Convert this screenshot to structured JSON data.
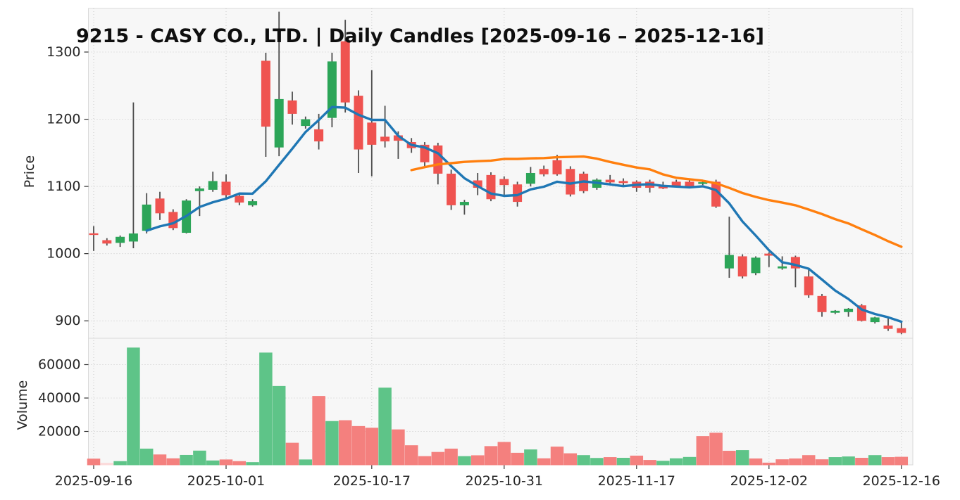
{
  "title": "9215 - CASY CO., LTD. | Daily Candles [2025-09-16 – 2025-12-16]",
  "price_axis_label": "Price",
  "volume_axis_label": "Volume",
  "colors": {
    "candle_up": "#2ca558",
    "candle_down": "#ef5350",
    "wick": "#4d4d4d",
    "volume_up": "#5ec488",
    "volume_down": "#f4807e",
    "volume_pale": "#fbdbdb",
    "ma_fast": "#1f77b4",
    "ma_slow": "#ff7f0e",
    "grid": "#c9c9c9",
    "panel_bg": "#f7f7f7",
    "frame": "#d9d9d9",
    "tick_text": "#262626"
  },
  "chart_data": {
    "type": "candlestick+volume",
    "title": "9215 - CASY CO., LTD. | Daily Candles [2025-09-16 – 2025-12-16]",
    "ylabel_price": "Price",
    "ylabel_volume": "Volume",
    "legend_position": "none",
    "grid": true,
    "price_axis_ticks": [
      1300,
      1200,
      1100,
      1000,
      900
    ],
    "volume_axis_ticks": [
      60000,
      40000,
      20000
    ],
    "price_ylim": [
      878,
      1365
    ],
    "volume_ylim": [
      0,
      75800
    ],
    "x_tick_indices": [
      0,
      10,
      21,
      31,
      41,
      51,
      61
    ],
    "x_tick_labels": [
      "2025-09-16",
      "2025-10-01",
      "2025-10-17",
      "2025-10-31",
      "2025-11-17",
      "2025-12-02",
      "2025-12-16"
    ],
    "ma_fast_period": 5,
    "ma_slow_period": 25,
    "dates": [
      "2025-09-16",
      "2025-09-17",
      "2025-09-18",
      "2025-09-19",
      "2025-09-22",
      "2025-09-24",
      "2025-09-25",
      "2025-09-26",
      "2025-09-29",
      "2025-09-30",
      "2025-10-01",
      "2025-10-02",
      "2025-10-03",
      "2025-10-06",
      "2025-10-07",
      "2025-10-08",
      "2025-10-09",
      "2025-10-10",
      "2025-10-14",
      "2025-10-15",
      "2025-10-16",
      "2025-10-17",
      "2025-10-20",
      "2025-10-21",
      "2025-10-22",
      "2025-10-23",
      "2025-10-24",
      "2025-10-27",
      "2025-10-28",
      "2025-10-29",
      "2025-10-30",
      "2025-10-31",
      "2025-11-04",
      "2025-11-05",
      "2025-11-06",
      "2025-11-07",
      "2025-11-10",
      "2025-11-11",
      "2025-11-12",
      "2025-11-13",
      "2025-11-14",
      "2025-11-17",
      "2025-11-18",
      "2025-11-19",
      "2025-11-20",
      "2025-11-21",
      "2025-11-25",
      "2025-11-26",
      "2025-11-27",
      "2025-11-28",
      "2025-12-01",
      "2025-12-02",
      "2025-12-03",
      "2025-12-04",
      "2025-12-05",
      "2025-12-08",
      "2025-12-09",
      "2025-12-10",
      "2025-12-11",
      "2025-12-12",
      "2025-12-15",
      "2025-12-16"
    ],
    "ohlc": [
      [
        1030,
        1041,
        1004,
        1028
      ],
      [
        1020,
        1023,
        1012,
        1015
      ],
      [
        1016,
        1027,
        1010,
        1025
      ],
      [
        1018,
        1225,
        1008,
        1030
      ],
      [
        1034,
        1090,
        1030,
        1073
      ],
      [
        1082,
        1092,
        1050,
        1060
      ],
      [
        1062,
        1066,
        1035,
        1038
      ],
      [
        1031,
        1081,
        1030,
        1079
      ],
      [
        1093,
        1100,
        1056,
        1097
      ],
      [
        1095,
        1122,
        1092,
        1108
      ],
      [
        1107,
        1118,
        1083,
        1087
      ],
      [
        1086,
        1089,
        1072,
        1076
      ],
      [
        1072,
        1081,
        1070,
        1078
      ],
      [
        1287,
        1299,
        1144,
        1189
      ],
      [
        1158,
        1360,
        1145,
        1230
      ],
      [
        1228,
        1241,
        1192,
        1208
      ],
      [
        1190,
        1204,
        1186,
        1200
      ],
      [
        1185,
        1208,
        1155,
        1167
      ],
      [
        1202,
        1299,
        1188,
        1286
      ],
      [
        1316,
        1348,
        1210,
        1225
      ],
      [
        1235,
        1243,
        1120,
        1155
      ],
      [
        1195,
        1273,
        1115,
        1162
      ],
      [
        1174,
        1220,
        1158,
        1167
      ],
      [
        1176,
        1182,
        1141,
        1168
      ],
      [
        1166,
        1172,
        1150,
        1157
      ],
      [
        1162,
        1166,
        1130,
        1136
      ],
      [
        1161,
        1165,
        1103,
        1119
      ],
      [
        1119,
        1125,
        1065,
        1072
      ],
      [
        1072,
        1080,
        1058,
        1077
      ],
      [
        1109,
        1120,
        1087,
        1098
      ],
      [
        1117,
        1121,
        1078,
        1081
      ],
      [
        1111,
        1115,
        1086,
        1102
      ],
      [
        1103,
        1107,
        1070,
        1077
      ],
      [
        1104,
        1129,
        1100,
        1120
      ],
      [
        1126,
        1131,
        1115,
        1118
      ],
      [
        1139,
        1147,
        1116,
        1118
      ],
      [
        1126,
        1130,
        1085,
        1088
      ],
      [
        1119,
        1122,
        1090,
        1093
      ],
      [
        1098,
        1112,
        1095,
        1110
      ],
      [
        1110,
        1117,
        1103,
        1106
      ],
      [
        1108,
        1112,
        1102,
        1105
      ],
      [
        1107,
        1109,
        1092,
        1098
      ],
      [
        1107,
        1110,
        1091,
        1098
      ],
      [
        1100,
        1107,
        1096,
        1097
      ],
      [
        1107,
        1110,
        1100,
        1101
      ],
      [
        1107,
        1109,
        1098,
        1099
      ],
      [
        1104,
        1107,
        1102,
        1106
      ],
      [
        1107,
        1110,
        1068,
        1070
      ],
      [
        978,
        1055,
        964,
        998
      ],
      [
        996,
        999,
        963,
        966
      ],
      [
        971,
        996,
        968,
        994
      ],
      [
        1000,
        1002,
        980,
        997
      ],
      [
        978,
        996,
        976,
        981
      ],
      [
        995,
        997,
        950,
        978
      ],
      [
        966,
        978,
        934,
        938
      ],
      [
        937,
        940,
        906,
        913
      ],
      [
        912,
        916,
        910,
        915
      ],
      [
        913,
        919,
        906,
        918
      ],
      [
        923,
        925,
        899,
        900
      ],
      [
        898,
        906,
        896,
        905
      ],
      [
        893,
        905,
        885,
        888
      ],
      [
        889,
        900,
        880,
        882
      ]
    ],
    "volume": [
      3500,
      1000,
      2000,
      70000,
      9500,
      6000,
      3700,
      5700,
      8300,
      2400,
      3000,
      2000,
      1400,
      67000,
      47000,
      13000,
      3000,
      41000,
      26000,
      26500,
      23000,
      22000,
      46000,
      21000,
      11500,
      5000,
      7500,
      9500,
      5000,
      5500,
      11000,
      13500,
      7000,
      9000,
      3700,
      10700,
      6700,
      5600,
      3900,
      4400,
      4000,
      5300,
      2700,
      2200,
      3700,
      4500,
      17000,
      19000,
      8200,
      8600,
      3600,
      1100,
      3100,
      3600,
      5600,
      3100,
      4400,
      4800,
      4000,
      5600,
      4400,
      4600
    ],
    "volume_colors": [
      "r",
      "p",
      "g",
      "g",
      "g",
      "r",
      "r",
      "g",
      "g",
      "g",
      "r",
      "r",
      "g",
      "g",
      "g",
      "r",
      "g",
      "r",
      "g",
      "r",
      "r",
      "r",
      "g",
      "r",
      "r",
      "r",
      "r",
      "r",
      "g",
      "r",
      "r",
      "r",
      "r",
      "g",
      "r",
      "r",
      "r",
      "g",
      "g",
      "r",
      "g",
      "r",
      "r",
      "g",
      "g",
      "g",
      "r",
      "r",
      "r",
      "g",
      "r",
      "r",
      "r",
      "r",
      "r",
      "r",
      "g",
      "g",
      "r",
      "g",
      "r",
      "r"
    ]
  }
}
